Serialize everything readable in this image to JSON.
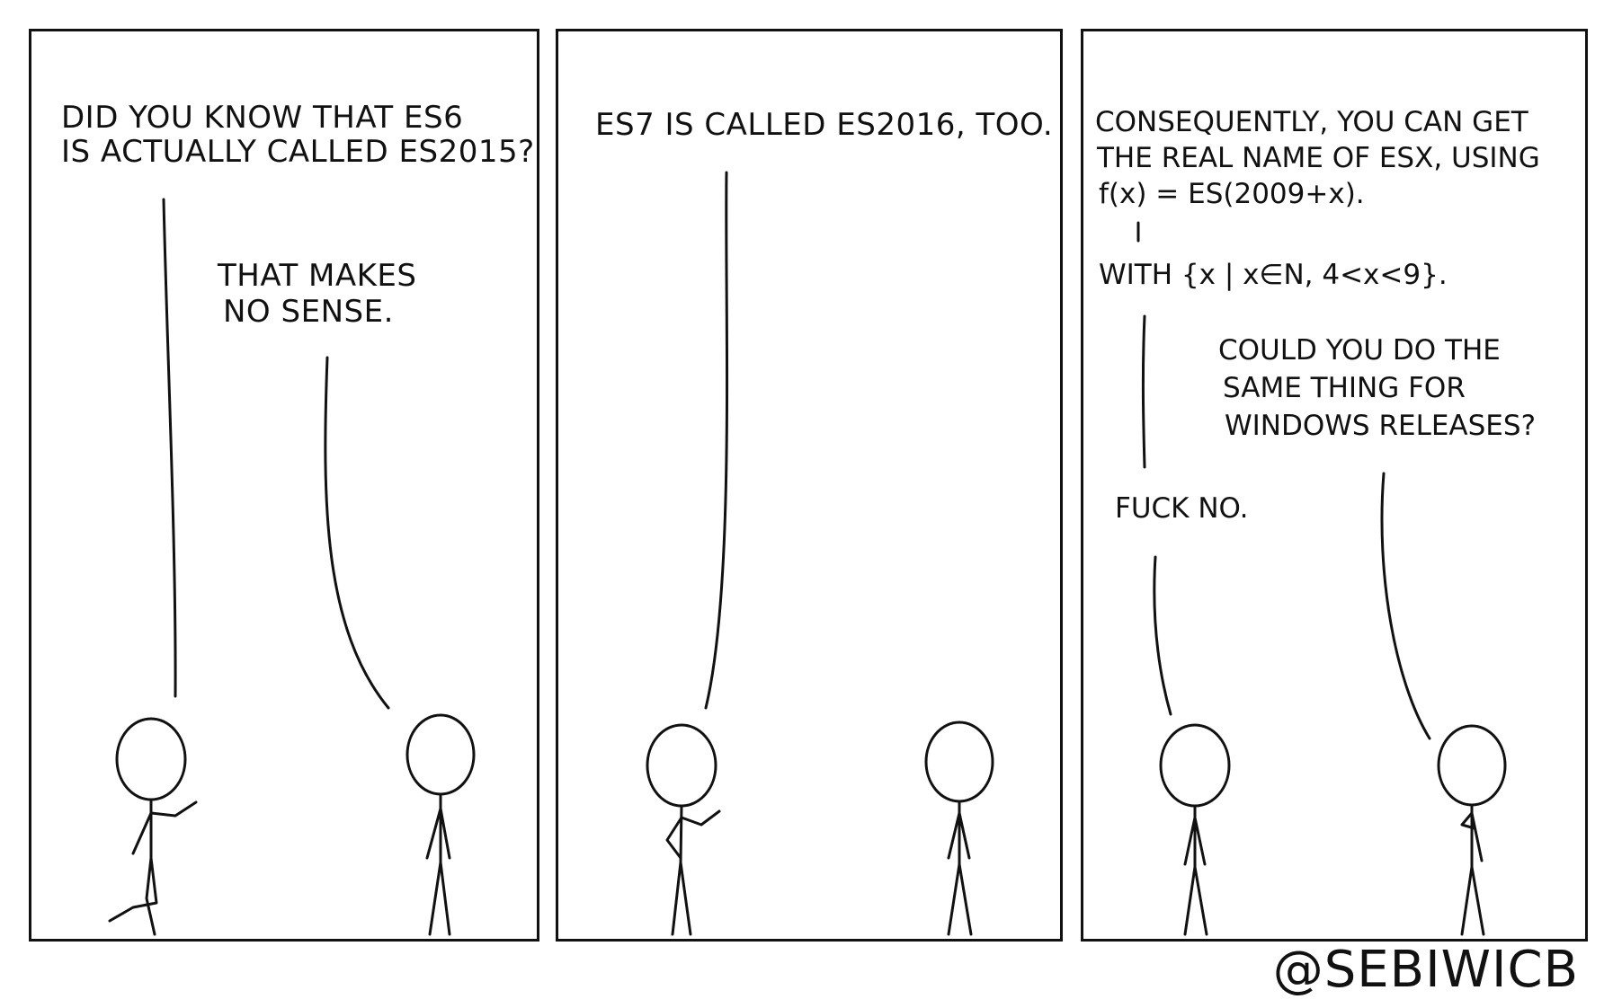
{
  "panels": [
    {
      "lines": [
        "DID YOU KNOW THAT ES6",
        "IS ACTUALLY CALLED ES2015?",
        "THAT MAKES",
        "NO SENSE."
      ]
    },
    {
      "lines": [
        "ES7 IS CALLED ES2016, TOO."
      ]
    },
    {
      "lines": [
        "CONSEQUENTLY, YOU CAN GET",
        "THE REAL NAME OF ESX, USING",
        "f(x) = ES(2009+x).",
        "WITH {x | x∈N, 4<x<9}.",
        "COULD YOU DO THE",
        "SAME THING FOR",
        "WINDOWS RELEASES?",
        "FUCK NO."
      ]
    }
  ],
  "credit": "@SEBIWICB",
  "colors": {
    "ink": "#111111",
    "paper": "#ffffff"
  }
}
